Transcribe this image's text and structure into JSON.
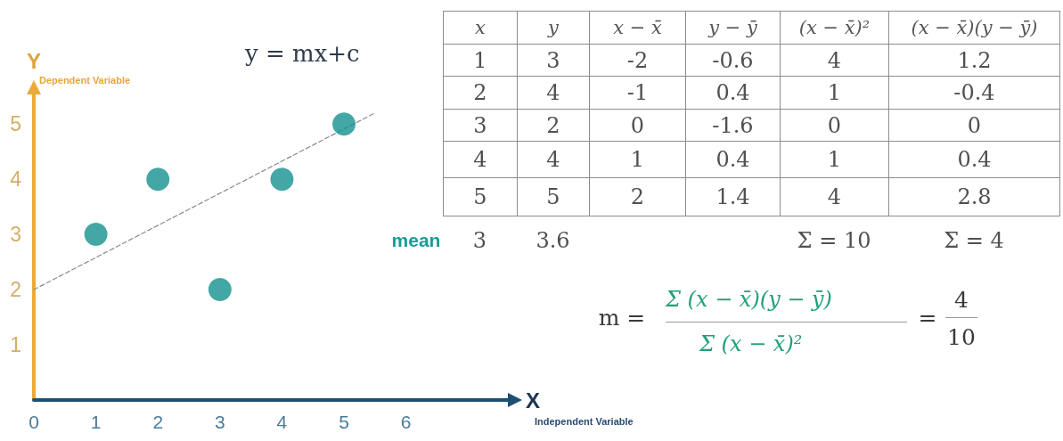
{
  "chart_data": {
    "type": "scatter",
    "title": "y = mx+c",
    "xlabel": "X",
    "ylabel": "Y",
    "xlim": [
      0,
      7.7
    ],
    "xticks": [
      0,
      1,
      2,
      3,
      4,
      5,
      6
    ],
    "ylim": [
      0,
      5.6
    ],
    "yticks": [
      1,
      2,
      3,
      4,
      5
    ],
    "marker": "circle",
    "series": [
      {
        "x": [
          1,
          2,
          3,
          4,
          5
        ],
        "values": [
          3,
          4,
          2,
          4,
          5
        ],
        "color": "#14918f"
      },
      {
        "type": "line",
        "x": [
          0,
          5.5
        ],
        "values": [
          2,
          5.2
        ],
        "color": "#8a8a8a",
        "line_style": "dashed",
        "marker": "none"
      }
    ],
    "annotations": [
      "Dependent Variable",
      "Independent Variable",
      "x",
      "y",
      "x − x̄",
      "y − ȳ",
      "(x − x̄)²",
      "(x − x̄)(y − ȳ)",
      "1",
      "3",
      "-2",
      "-0.6",
      "4",
      "1.2",
      "2",
      "4",
      "-1",
      "0.4",
      "1",
      "-0.4",
      "3",
      "2",
      "0",
      "-1.6",
      "0",
      "0",
      "4",
      "4",
      "1",
      "0.4",
      "1",
      "0.4",
      "5",
      "5",
      "2",
      "1.4",
      "4",
      "2.8",
      "mean",
      "3",
      "3.6",
      "Σ = 10",
      "Σ = 4",
      "m =",
      "Σ (x − x̄)(y − ȳ)",
      "Σ (x − x̄)²",
      "=",
      "4",
      "10"
    ]
  }
}
